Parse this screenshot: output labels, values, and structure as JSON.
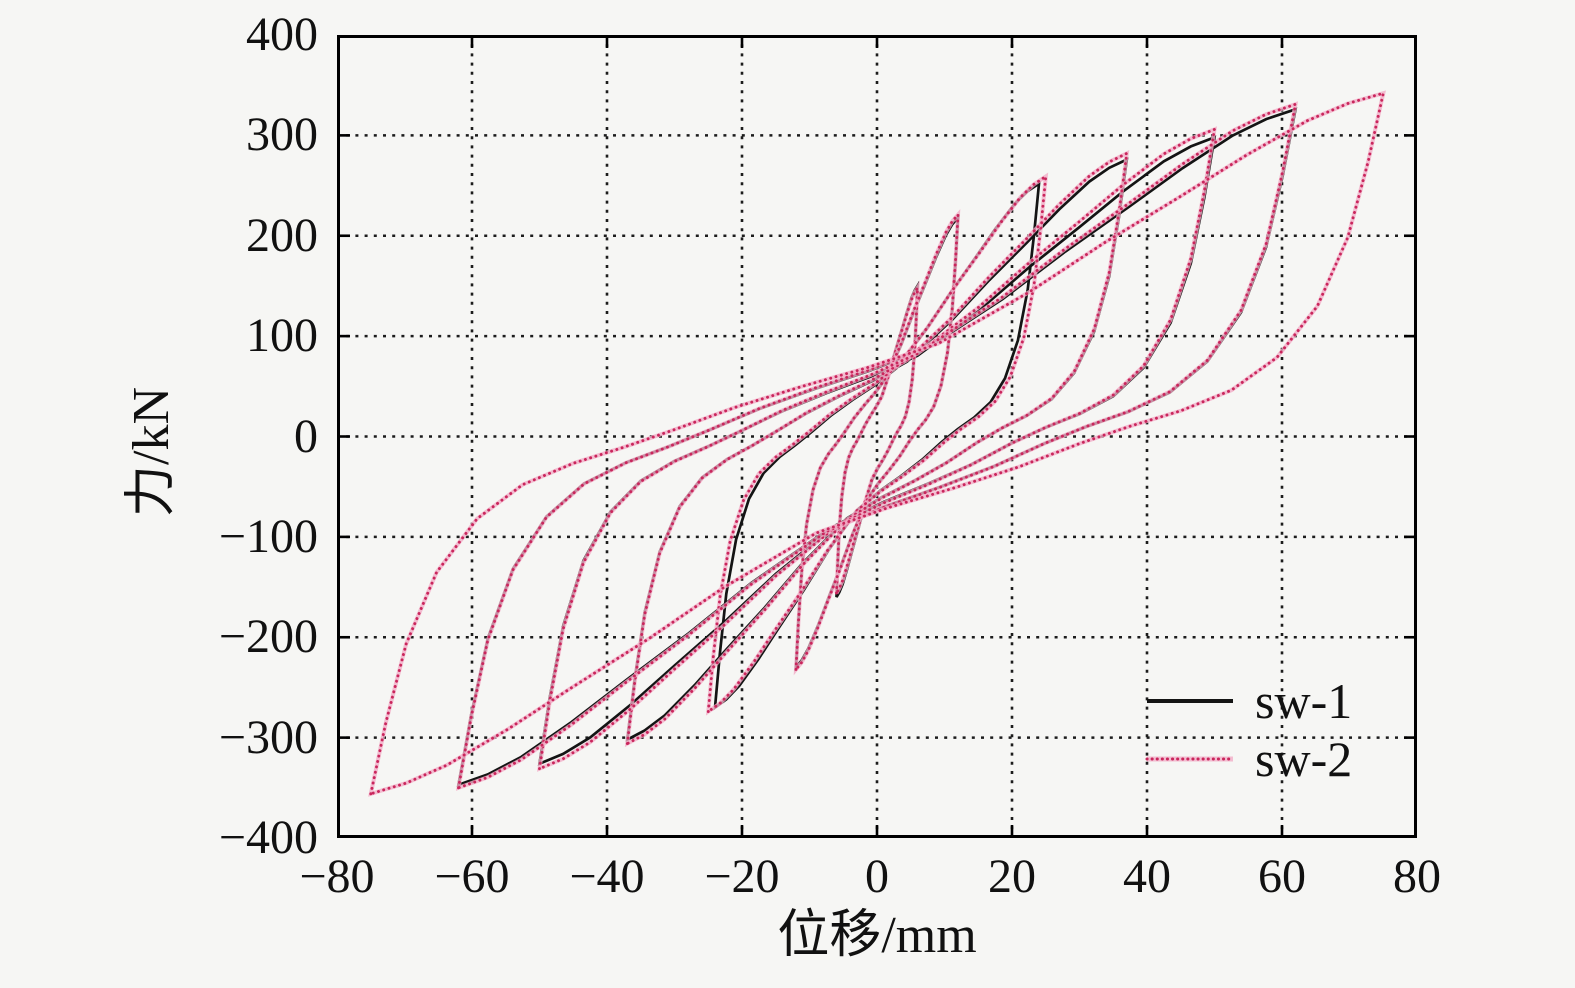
{
  "page": {
    "background": "#f6f6f4"
  },
  "chart_data": {
    "type": "line",
    "subtype": "hysteresis-loops",
    "title": "",
    "xlabel": "位移/mm",
    "ylabel": "力/kN",
    "xlim": [
      -80,
      80
    ],
    "ylim": [
      -400,
      400
    ],
    "grid": "dotted",
    "frame": "box-with-inward-ticks",
    "xticks": {
      "values": [
        -80,
        -60,
        -40,
        -20,
        0,
        20,
        40,
        60,
        80
      ],
      "labels": [
        "−80",
        "−60",
        "−40",
        "−20",
        "0",
        "20",
        "40",
        "60",
        "80"
      ]
    },
    "yticks": {
      "values": [
        400,
        300,
        200,
        100,
        0,
        -100,
        -200,
        -300,
        -400
      ],
      "labels": [
        "400",
        "300",
        "200",
        "100",
        "0",
        "−100",
        "−200",
        "−300",
        "−400"
      ]
    },
    "legend": {
      "position": "lower-right",
      "entries": [
        {
          "label": "sw-1",
          "line_style": "solid"
        },
        {
          "label": "sw-2",
          "line_style": "dotted"
        }
      ]
    },
    "loop_shape_fractions": [
      [
        -1.0,
        -1.0
      ],
      [
        -0.97,
        -0.8
      ],
      [
        -0.93,
        -0.58
      ],
      [
        -0.87,
        -0.38
      ],
      [
        -0.79,
        -0.23
      ],
      [
        -0.7,
        -0.135
      ],
      [
        -0.6,
        -0.075
      ],
      [
        -0.5,
        -0.03
      ],
      [
        -0.4,
        0.02
      ],
      [
        -0.28,
        0.085
      ],
      [
        -0.15,
        0.145
      ],
      [
        -0.02,
        0.2
      ],
      [
        0.12,
        0.27
      ],
      [
        0.3,
        0.42
      ],
      [
        0.45,
        0.565
      ],
      [
        0.6,
        0.7
      ],
      [
        0.73,
        0.82
      ],
      [
        0.85,
        0.92
      ],
      [
        0.93,
        0.97
      ],
      [
        1.0,
        1.0
      ]
    ],
    "series": [
      {
        "name": "sw-1",
        "line_style": "solid",
        "color": "#141414",
        "cycles": [
          {
            "amp": 6,
            "f_pos": 150,
            "f_neg": -160
          },
          {
            "amp": 12,
            "f_pos": 218,
            "f_neg": -230
          },
          {
            "amp": 24,
            "f_pos": 252,
            "f_neg": -270
          },
          {
            "amp": 37,
            "f_pos": 276,
            "f_neg": -302
          },
          {
            "amp": 50,
            "f_pos": 298,
            "f_neg": -326
          },
          {
            "amp": 62,
            "f_pos": 326,
            "f_neg": -347
          }
        ]
      },
      {
        "name": "sw-2",
        "line_style": "dotted",
        "color": "#c9265c",
        "halo_color": "#f2aec7",
        "cycles": [
          {
            "amp": 6,
            "f_pos": 148,
            "f_neg": -156
          },
          {
            "amp": 12,
            "f_pos": 221,
            "f_neg": -232
          },
          {
            "amp": 25,
            "f_pos": 259,
            "f_neg": -274
          },
          {
            "amp": 37,
            "f_pos": 282,
            "f_neg": -306
          },
          {
            "amp": 50,
            "f_pos": 306,
            "f_neg": -331
          },
          {
            "amp": 62,
            "f_pos": 331,
            "f_neg": -350
          },
          {
            "amp": 75,
            "f_pos": 342,
            "f_neg": -356
          }
        ]
      }
    ]
  }
}
